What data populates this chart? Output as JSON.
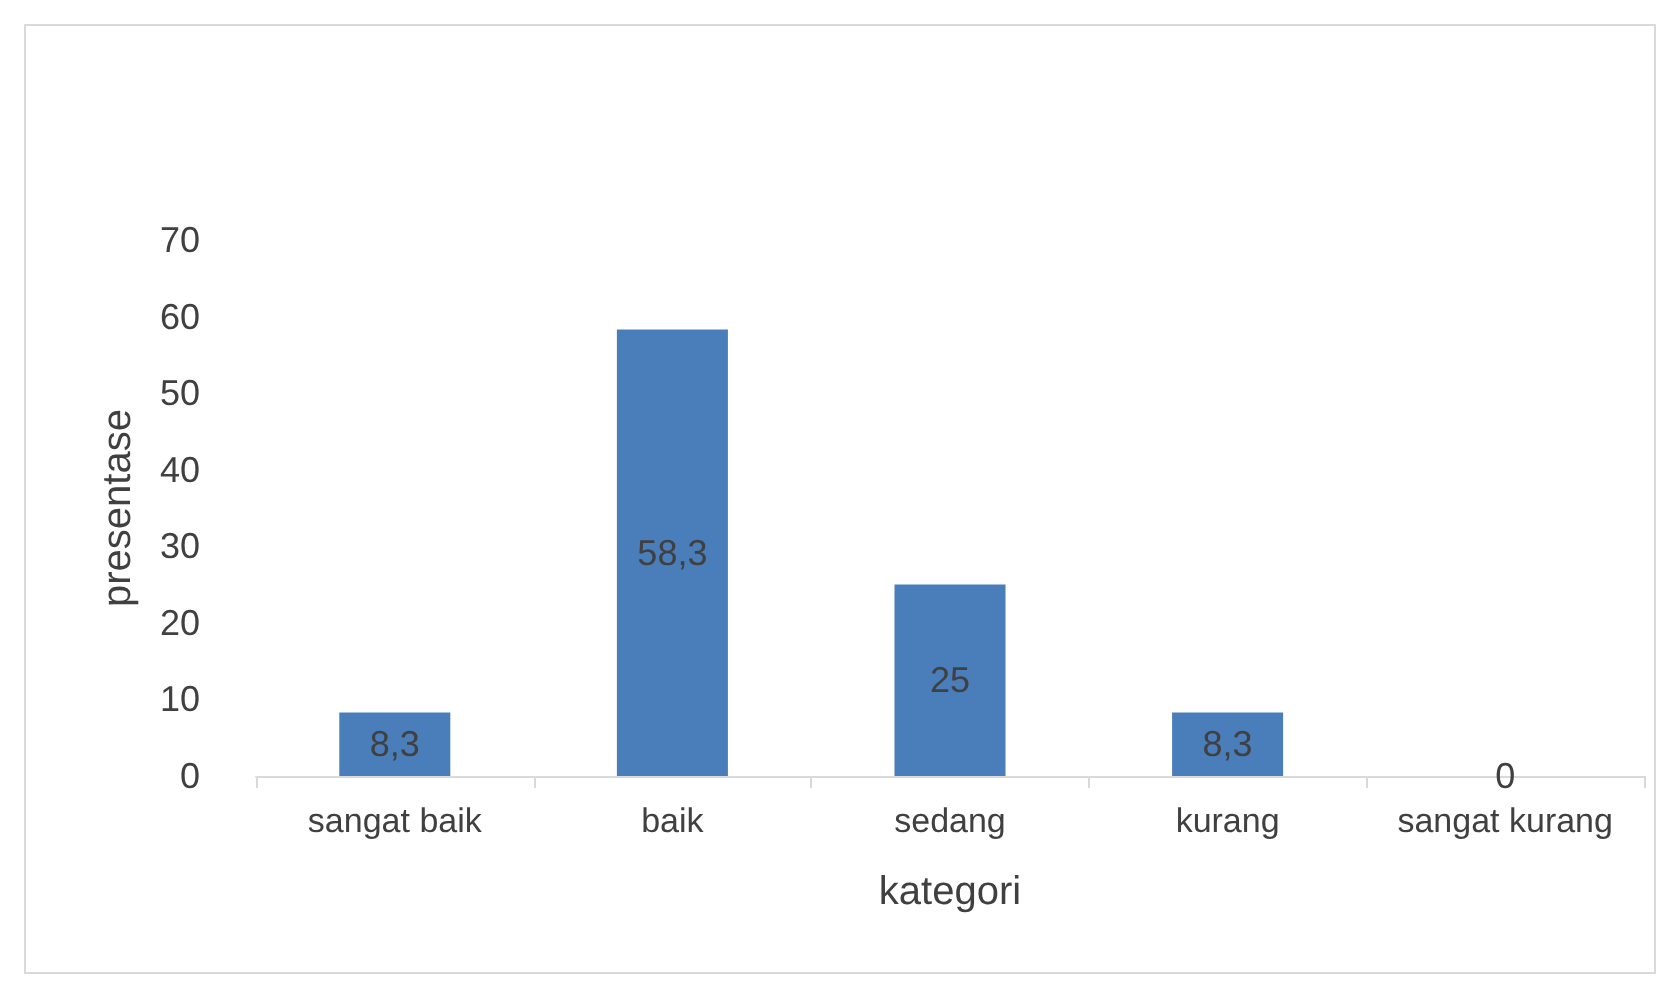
{
  "chart_data": {
    "type": "bar",
    "xlabel": "kategori",
    "ylabel": "presentase",
    "categories": [
      "sangat baik",
      "baik",
      "sedang",
      "kurang",
      "sangat kurang"
    ],
    "values": [
      8.3,
      58.3,
      25,
      8.3,
      0
    ],
    "value_labels": [
      "8,3",
      "58,3",
      "25",
      "8,3",
      "0"
    ],
    "color": "#4a7ebb",
    "ylim": [
      0,
      70
    ],
    "yticks": [
      0,
      10,
      20,
      30,
      40,
      50,
      60,
      70
    ],
    "grid": false
  }
}
